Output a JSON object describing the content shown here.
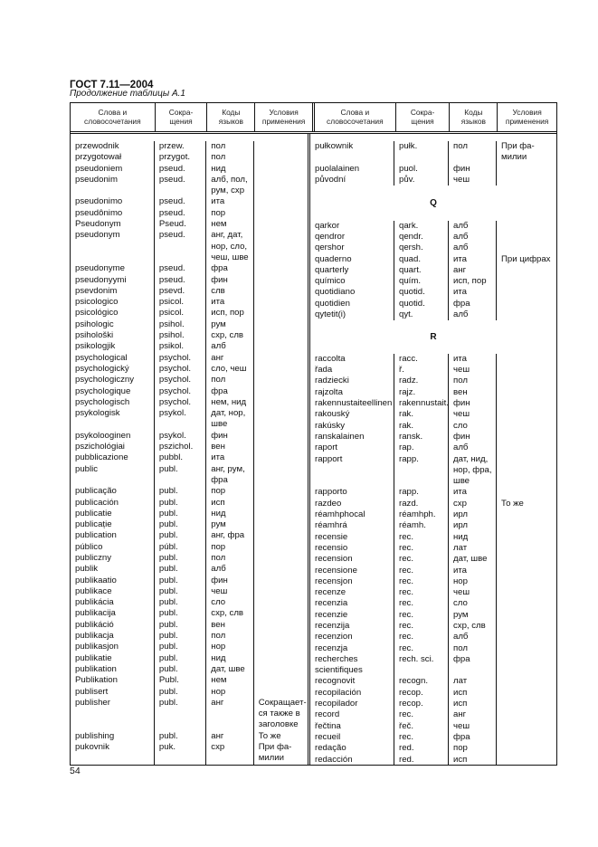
{
  "header": {
    "title": "ГОСТ 7.11—2004",
    "subtitle": "Продолжение таблицы А.1"
  },
  "columns": [
    [
      "Слова и",
      "словосочетания"
    ],
    [
      "Сокра-",
      "щения"
    ],
    [
      "Коды",
      "языков"
    ],
    [
      "Условия",
      "применения"
    ],
    [
      "Слова и",
      "словосочетания"
    ],
    [
      "Сокра-",
      "щения"
    ],
    [
      "Коды",
      "языков"
    ],
    [
      "Условия",
      "применения"
    ]
  ],
  "left": [
    {
      "word": [
        "przewodnik"
      ],
      "abbr": "przew.",
      "codes": [
        "пол"
      ]
    },
    {
      "word": [
        "przygotował"
      ],
      "abbr": "przygot.",
      "codes": [
        "пол"
      ]
    },
    {
      "word": [
        "pseudoniem"
      ],
      "abbr": "pseud.",
      "codes": [
        "нид"
      ]
    },
    {
      "word": [
        "pseudonim"
      ],
      "abbr": "pseud.",
      "codes": [
        "алб, пол,",
        "рум, схр"
      ]
    },
    {
      "word": [
        "pseudonimo"
      ],
      "abbr": "pseud.",
      "codes": [
        "ита"
      ]
    },
    {
      "word": [
        "pseudônimo"
      ],
      "abbr": "pseud.",
      "codes": [
        "пор"
      ]
    },
    {
      "word": [
        "Pseudonym"
      ],
      "abbr": "Pseud.",
      "codes": [
        "нем"
      ]
    },
    {
      "word": [
        "pseudonym"
      ],
      "abbr": "pseud.",
      "codes": [
        "анг, дат,",
        "нор, сло,",
        "чеш, шве"
      ]
    },
    {
      "word": [
        "pseudonyme"
      ],
      "abbr": "pseud.",
      "codes": [
        "фра"
      ]
    },
    {
      "word": [
        "pseudonyymi"
      ],
      "abbr": "pseud.",
      "codes": [
        "фин"
      ]
    },
    {
      "word": [
        "psevdonim"
      ],
      "abbr": "psevd.",
      "codes": [
        "слв"
      ]
    },
    {
      "word": [
        "psicologico"
      ],
      "abbr": "psicol.",
      "codes": [
        "ита"
      ]
    },
    {
      "word": [
        "psicológico"
      ],
      "abbr": "psicol.",
      "codes": [
        "исп, пор"
      ]
    },
    {
      "word": [
        "psihologic"
      ],
      "abbr": "psihol.",
      "codes": [
        "рум"
      ]
    },
    {
      "word": [
        "psihološki"
      ],
      "abbr": "psihol.",
      "codes": [
        "схр, слв"
      ]
    },
    {
      "word": [
        "psikologjik"
      ],
      "abbr": "psikol.",
      "codes": [
        "алб"
      ]
    },
    {
      "word": [
        "psychological"
      ],
      "abbr": "psychol.",
      "codes": [
        "анг"
      ]
    },
    {
      "word": [
        "psychologický"
      ],
      "abbr": "psychol.",
      "codes": [
        "сло, чеш"
      ]
    },
    {
      "word": [
        "psychologiczny"
      ],
      "abbr": "psychol.",
      "codes": [
        "пол"
      ]
    },
    {
      "word": [
        "psychologique"
      ],
      "abbr": "psychol.",
      "codes": [
        "фра"
      ]
    },
    {
      "word": [
        "psychologisch"
      ],
      "abbr": "psychol.",
      "codes": [
        "нем, нид"
      ]
    },
    {
      "word": [
        "psykologisk"
      ],
      "abbr": "psykol.",
      "codes": [
        "дат, нор,",
        "шве"
      ]
    },
    {
      "word": [
        "psykolooginen"
      ],
      "abbr": "psykol.",
      "codes": [
        "фин"
      ]
    },
    {
      "word": [
        "pszichológiai"
      ],
      "abbr": "pszichol.",
      "codes": [
        "вен"
      ]
    },
    {
      "word": [
        "pubblicazione"
      ],
      "abbr": "pubbl.",
      "codes": [
        "ита"
      ]
    },
    {
      "word": [
        "public"
      ],
      "abbr": "publ.",
      "codes": [
        "анг, рум,",
        "фра"
      ]
    },
    {
      "word": [
        "publicação"
      ],
      "abbr": "publ.",
      "codes": [
        "пор"
      ]
    },
    {
      "word": [
        "publicación"
      ],
      "abbr": "publ.",
      "codes": [
        "исп"
      ]
    },
    {
      "word": [
        "publicatie"
      ],
      "abbr": "publ.",
      "codes": [
        "нид"
      ]
    },
    {
      "word": [
        "publicație"
      ],
      "abbr": "publ.",
      "codes": [
        "рум"
      ]
    },
    {
      "word": [
        "publication"
      ],
      "abbr": "publ.",
      "codes": [
        "анг, фра"
      ]
    },
    {
      "word": [
        "público"
      ],
      "abbr": "públ.",
      "codes": [
        "пор"
      ]
    },
    {
      "word": [
        "publiczny"
      ],
      "abbr": "publ.",
      "codes": [
        "пол"
      ]
    },
    {
      "word": [
        "publik"
      ],
      "abbr": "publ.",
      "codes": [
        "алб"
      ]
    },
    {
      "word": [
        "publikaatio"
      ],
      "abbr": "publ.",
      "codes": [
        "фин"
      ]
    },
    {
      "word": [
        "publikace"
      ],
      "abbr": "publ.",
      "codes": [
        "чеш"
      ]
    },
    {
      "word": [
        "publikácia"
      ],
      "abbr": "publ.",
      "codes": [
        "сло"
      ]
    },
    {
      "word": [
        "publikacija"
      ],
      "abbr": "publ.",
      "codes": [
        "схр, слв"
      ]
    },
    {
      "word": [
        "publikáció"
      ],
      "abbr": "publ.",
      "codes": [
        "вен"
      ]
    },
    {
      "word": [
        "publikacja"
      ],
      "abbr": "publ.",
      "codes": [
        "пол"
      ]
    },
    {
      "word": [
        "publikasjon"
      ],
      "abbr": "publ.",
      "codes": [
        "нор"
      ]
    },
    {
      "word": [
        "publikatie"
      ],
      "abbr": "publ.",
      "codes": [
        "нид"
      ]
    },
    {
      "word": [
        "publikation"
      ],
      "abbr": "publ.",
      "codes": [
        "дат, шве"
      ]
    },
    {
      "word": [
        "Publikation"
      ],
      "abbr": "Publ.",
      "codes": [
        "нем"
      ]
    },
    {
      "word": [
        "publisert"
      ],
      "abbr": "publ.",
      "codes": [
        "нор"
      ]
    },
    {
      "word": [
        "publisher"
      ],
      "abbr": "publ.",
      "codes": [
        "анг"
      ],
      "cond": [
        "Сокращает-",
        "ся также в",
        "заголовке"
      ]
    },
    {
      "word": [
        "publishing"
      ],
      "abbr": "publ.",
      "codes": [
        "анг"
      ],
      "cond": [
        "То же"
      ]
    },
    {
      "word": [
        "pukovnik"
      ],
      "abbr": "puk.",
      "codes": [
        "схр"
      ],
      "cond": [
        "При фа-",
        "милии"
      ]
    }
  ],
  "right": [
    {
      "word": [
        "pułkownik"
      ],
      "abbr": "pułk.",
      "codes": [
        "пол"
      ],
      "cond": [
        "При фа-",
        "милии"
      ]
    },
    {
      "word": [
        "puolalainen"
      ],
      "abbr": "puol.",
      "codes": [
        "фин"
      ]
    },
    {
      "word": [
        "původní"
      ],
      "abbr": "pův.",
      "codes": [
        "чеш"
      ]
    },
    {
      "section": "Q"
    },
    {
      "word": [
        "qarkor"
      ],
      "abbr": "qark.",
      "codes": [
        "алб"
      ]
    },
    {
      "word": [
        "qendror"
      ],
      "abbr": "qendr.",
      "codes": [
        "алб"
      ]
    },
    {
      "word": [
        "qershor"
      ],
      "abbr": "qersh.",
      "codes": [
        "алб"
      ]
    },
    {
      "word": [
        "quaderno"
      ],
      "abbr": "quad.",
      "codes": [
        "ита"
      ],
      "cond": [
        "При цифрах"
      ]
    },
    {
      "word": [
        "quarterly"
      ],
      "abbr": "quart.",
      "codes": [
        "анг"
      ]
    },
    {
      "word": [
        "químico"
      ],
      "abbr": "quím.",
      "codes": [
        "исп, пор"
      ]
    },
    {
      "word": [
        "quotidiano"
      ],
      "abbr": "quotid.",
      "codes": [
        "ита"
      ]
    },
    {
      "word": [
        "quotidien"
      ],
      "abbr": "quotid.",
      "codes": [
        "фра"
      ]
    },
    {
      "word": [
        "qytetit(i)"
      ],
      "abbr": "qyt.",
      "codes": [
        "алб"
      ]
    },
    {
      "section": "R"
    },
    {
      "word": [
        "raccolta"
      ],
      "abbr": "racc.",
      "codes": [
        "ита"
      ]
    },
    {
      "word": [
        "řada"
      ],
      "abbr": "ř.",
      "codes": [
        "чеш"
      ]
    },
    {
      "word": [
        "radziecki"
      ],
      "abbr": "radz.",
      "codes": [
        "пол"
      ]
    },
    {
      "word": [
        "rajzolta"
      ],
      "abbr": "rajz.",
      "codes": [
        "вен"
      ]
    },
    {
      "word": [
        "rakennustaiteellinen"
      ],
      "abbr": "rakennustait.",
      "codes": [
        "фин"
      ]
    },
    {
      "word": [
        "rakouský"
      ],
      "abbr": "rak.",
      "codes": [
        "чеш"
      ]
    },
    {
      "word": [
        "rakúsky"
      ],
      "abbr": "rak.",
      "codes": [
        "сло"
      ]
    },
    {
      "word": [
        "ranskalainen"
      ],
      "abbr": "ransk.",
      "codes": [
        "фин"
      ]
    },
    {
      "word": [
        "raport"
      ],
      "abbr": "rap.",
      "codes": [
        "алб"
      ]
    },
    {
      "word": [
        "rapport"
      ],
      "abbr": "rapp.",
      "codes": [
        "дат, нид,",
        "нор, фра,",
        "шве"
      ]
    },
    {
      "word": [
        "rapporto"
      ],
      "abbr": "rapp.",
      "codes": [
        "ита"
      ]
    },
    {
      "word": [
        "razdeo"
      ],
      "abbr": "razd.",
      "codes": [
        "схр"
      ],
      "cond": [
        "То же"
      ]
    },
    {
      "word": [
        "réamhphocal"
      ],
      "abbr": "réamhph.",
      "codes": [
        "ирл"
      ]
    },
    {
      "word": [
        "réamhrá"
      ],
      "abbr": "réamh.",
      "codes": [
        "ирл"
      ]
    },
    {
      "word": [
        "recensie"
      ],
      "abbr": "rec.",
      "codes": [
        "нид"
      ]
    },
    {
      "word": [
        "recensio"
      ],
      "abbr": "rec.",
      "codes": [
        "лат"
      ]
    },
    {
      "word": [
        "recension"
      ],
      "abbr": "rec.",
      "codes": [
        "дат, шве"
      ]
    },
    {
      "word": [
        "recensione"
      ],
      "abbr": "rec.",
      "codes": [
        "ита"
      ]
    },
    {
      "word": [
        "recensjon"
      ],
      "abbr": "rec.",
      "codes": [
        "нор"
      ]
    },
    {
      "word": [
        "recenze"
      ],
      "abbr": "rec.",
      "codes": [
        "чеш"
      ]
    },
    {
      "word": [
        "recenzia"
      ],
      "abbr": "rec.",
      "codes": [
        "сло"
      ]
    },
    {
      "word": [
        "recenzie"
      ],
      "abbr": "rec.",
      "codes": [
        "рум"
      ]
    },
    {
      "word": [
        "recenzija"
      ],
      "abbr": "rec.",
      "codes": [
        "схр, слв"
      ]
    },
    {
      "word": [
        "recenzion"
      ],
      "abbr": "rec.",
      "codes": [
        "алб"
      ]
    },
    {
      "word": [
        "recenzja"
      ],
      "abbr": "rec.",
      "codes": [
        "пол"
      ]
    },
    {
      "word": [
        "recherches",
        "scientifiques"
      ],
      "abbr": "rech. sci.",
      "codes": [
        "фра"
      ]
    },
    {
      "word": [
        "recognovit"
      ],
      "abbr": "recogn.",
      "codes": [
        "лат"
      ]
    },
    {
      "word": [
        "recopilación"
      ],
      "abbr": "recop.",
      "codes": [
        "исп"
      ]
    },
    {
      "word": [
        "recopilador"
      ],
      "abbr": "recop.",
      "codes": [
        "исп"
      ]
    },
    {
      "word": [
        "record"
      ],
      "abbr": "rec.",
      "codes": [
        "анг"
      ]
    },
    {
      "word": [
        "řečtina"
      ],
      "abbr": "řeč.",
      "codes": [
        "чеш"
      ]
    },
    {
      "word": [
        "recueil"
      ],
      "abbr": "rec.",
      "codes": [
        "фра"
      ]
    },
    {
      "word": [
        "redação"
      ],
      "abbr": "red.",
      "codes": [
        "пор"
      ]
    },
    {
      "word": [
        "redacción"
      ],
      "abbr": "red.",
      "codes": [
        "исп"
      ]
    }
  ],
  "footer": {
    "page_number": "54"
  }
}
